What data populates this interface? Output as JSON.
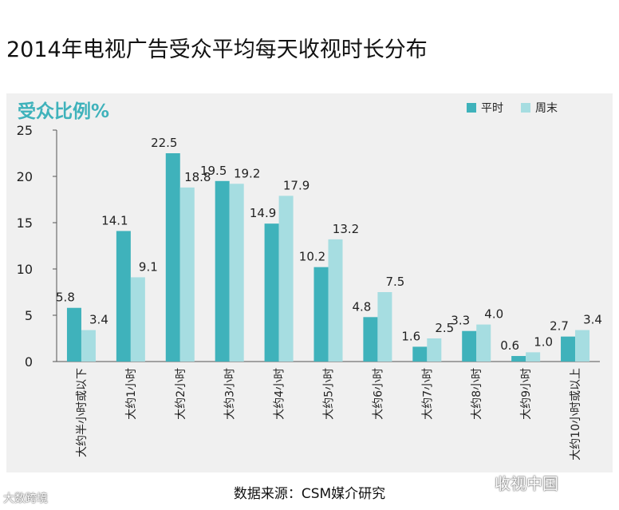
{
  "title": "2014年电视广告受众平均每天收视时长分布",
  "source": "数据来源：CSM媒介研究",
  "watermarks": {
    "left": "大数跨境",
    "right": "收视中国"
  },
  "colors": {
    "weekday": "#3fb2bb",
    "weekend": "#a6dde1",
    "axis_label": "#3fb2bb"
  },
  "chart_data": {
    "type": "bar",
    "title": "2014年电视广告受众平均每天收视时长分布",
    "ylabel": "受众比例%",
    "xlabel": "",
    "ylim": [
      0,
      25
    ],
    "yticks": [
      0,
      5,
      10,
      15,
      20,
      25
    ],
    "legend_position": "top-right",
    "categories": [
      "大约半小时或以下",
      "大约1小时",
      "大约2小时",
      "大约3小时",
      "大约4小时",
      "大约5小时",
      "大约6小时",
      "大约7小时",
      "大约8小时",
      "大约9小时",
      "大约10小时或以上"
    ],
    "series": [
      {
        "name": "平时",
        "values": [
          5.8,
          14.1,
          22.5,
          19.5,
          14.9,
          10.2,
          4.8,
          1.6,
          3.3,
          0.6,
          2.7
        ]
      },
      {
        "name": "周末",
        "values": [
          3.4,
          9.1,
          18.8,
          19.2,
          17.9,
          13.2,
          7.5,
          2.5,
          4.0,
          1.0,
          3.4
        ]
      }
    ]
  }
}
